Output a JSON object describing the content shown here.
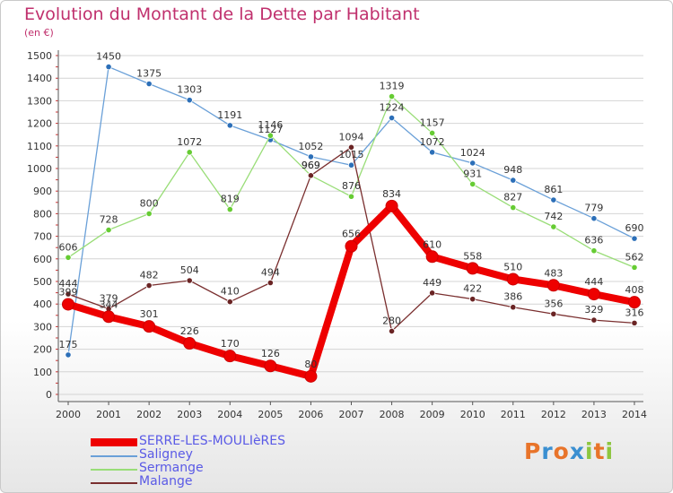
{
  "header": {
    "title": "Evolution du Montant de la Dette par Habitant",
    "unit": "(en €)"
  },
  "logo": {
    "text": "Proxiti",
    "letters": [
      {
        "ch": "P",
        "color": "#e8742a"
      },
      {
        "ch": "r",
        "color": "#3a8fd1"
      },
      {
        "ch": "o",
        "color": "#e8742a"
      },
      {
        "ch": "x",
        "color": "#3a8fd1"
      },
      {
        "ch": "i",
        "color": "#8dc63f"
      },
      {
        "ch": "t",
        "color": "#e8742a"
      },
      {
        "ch": "i",
        "color": "#8dc63f"
      }
    ]
  },
  "chart_data": {
    "type": "line",
    "title": "Evolution du Montant de la Dette par Habitant",
    "ylabel": "(en €)",
    "xlabel": "",
    "ylim": [
      0,
      1500
    ],
    "yticks": [
      0,
      100,
      200,
      300,
      400,
      500,
      600,
      700,
      800,
      900,
      1000,
      1100,
      1200,
      1300,
      1400,
      1500
    ],
    "x": [
      "2000",
      "2001",
      "2002",
      "2003",
      "2004",
      "2005",
      "2006",
      "2007",
      "2008",
      "2009",
      "2010",
      "2011",
      "2012",
      "2013",
      "2014"
    ],
    "grid": "horizontal",
    "legend_position": "bottom-left",
    "series": [
      {
        "name": "SERRE-LES-MOULIèRES",
        "color": "#ee0000",
        "values": [
          399,
          344,
          301,
          226,
          170,
          126,
          80,
          656,
          834,
          610,
          558,
          510,
          483,
          444,
          408
        ]
      },
      {
        "name": "Saligney",
        "color": "#6aa0d8",
        "marker": "#2c6fb8",
        "values": [
          175,
          1450,
          1375,
          1303,
          1191,
          1127,
          1052,
          1015,
          1224,
          1072,
          1024,
          948,
          861,
          779,
          690
        ]
      },
      {
        "name": "Sermange",
        "color": "#99dd77",
        "marker": "#66cc33",
        "values": [
          606,
          728,
          800,
          1072,
          819,
          1146,
          969,
          876,
          1319,
          1157,
          931,
          827,
          742,
          636,
          562
        ]
      },
      {
        "name": "Malange",
        "color": "#7a2f2f",
        "marker": "#6a2424",
        "values": [
          444,
          379,
          482,
          504,
          410,
          494,
          969,
          1094,
          280,
          449,
          422,
          386,
          356,
          329,
          316
        ]
      }
    ]
  }
}
